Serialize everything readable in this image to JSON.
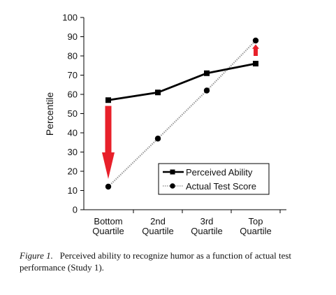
{
  "chart_data": {
    "type": "line",
    "ylabel": "Percentile",
    "ylim": [
      0,
      100
    ],
    "yticks": [
      0,
      10,
      20,
      30,
      40,
      50,
      60,
      70,
      80,
      90,
      100
    ],
    "categories": [
      [
        "Bottom",
        "Quartile"
      ],
      [
        "2nd",
        "Quartile"
      ],
      [
        "3rd",
        "Quartile"
      ],
      [
        "Top",
        "Quartile"
      ]
    ],
    "series": [
      {
        "name": "Perceived Ability",
        "values": [
          57,
          61,
          71,
          76
        ],
        "marker": "square",
        "style": "solid",
        "color": "#000000"
      },
      {
        "name": "Actual Test Score",
        "values": [
          12,
          37,
          62,
          88
        ],
        "marker": "circle",
        "style": "dotted",
        "color": "#9a9a9a"
      }
    ],
    "legend": "bottom-right",
    "annotations": [
      {
        "type": "arrow-down",
        "category_index": 0,
        "from": 54,
        "to": 16,
        "color": "#e8202a"
      },
      {
        "type": "arrow-up",
        "category_index": 3,
        "from": 80,
        "to": 86,
        "color": "#e8202a"
      }
    ]
  },
  "caption": {
    "figure_label": "Figure 1.",
    "text": "Perceived ability to recognize humor as a function of actual test performance (Study 1)."
  }
}
